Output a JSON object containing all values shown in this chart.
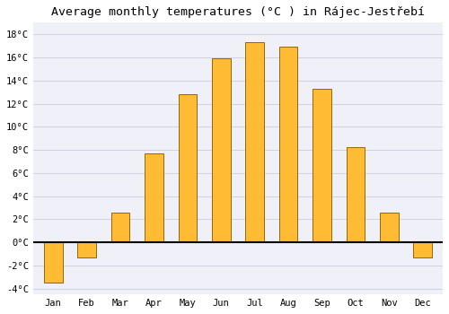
{
  "title": "Average monthly temperatures (°C ) in Rájec-Jestřebí",
  "months": [
    "Jan",
    "Feb",
    "Mar",
    "Apr",
    "May",
    "Jun",
    "Jul",
    "Aug",
    "Sep",
    "Oct",
    "Nov",
    "Dec"
  ],
  "values": [
    -3.5,
    -1.3,
    2.6,
    7.7,
    12.8,
    15.9,
    17.3,
    16.9,
    13.3,
    8.2,
    2.6,
    -1.3
  ],
  "bar_color_top": "#FFBB33",
  "bar_color_bottom": "#FF9900",
  "bar_edge_color": "#996600",
  "ylim": [
    -4.5,
    19
  ],
  "yticks": [
    -4,
    -2,
    0,
    2,
    4,
    6,
    8,
    10,
    12,
    14,
    16,
    18
  ],
  "background_color": "#FFFFFF",
  "plot_bg_color": "#F0F0F8",
  "grid_color": "#CCCCDD",
  "title_fontsize": 9.5,
  "tick_fontsize": 7.5,
  "font_family": "monospace"
}
